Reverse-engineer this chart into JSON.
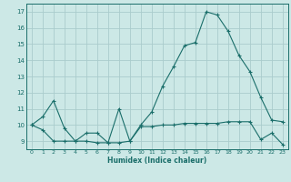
{
  "xlabel": "Humidex (Indice chaleur)",
  "bg_color": "#cce8e6",
  "grid_color": "#aacccc",
  "line_color": "#1a6e6a",
  "xlim": [
    -0.5,
    23.5
  ],
  "ylim": [
    8.5,
    17.5
  ],
  "xticks": [
    0,
    1,
    2,
    3,
    4,
    5,
    6,
    7,
    8,
    9,
    10,
    11,
    12,
    13,
    14,
    15,
    16,
    17,
    18,
    19,
    20,
    21,
    22,
    23
  ],
  "yticks": [
    9,
    10,
    11,
    12,
    13,
    14,
    15,
    16,
    17
  ],
  "line1_x": [
    0,
    1,
    2,
    3,
    4,
    5,
    6,
    7,
    8,
    9,
    10,
    11,
    12,
    13,
    14,
    15,
    16,
    17,
    18,
    19,
    20,
    21,
    22,
    23
  ],
  "line1_y": [
    10.0,
    10.5,
    11.5,
    9.8,
    9.0,
    9.5,
    9.5,
    8.9,
    11.0,
    9.0,
    10.0,
    10.8,
    12.4,
    13.6,
    14.9,
    15.1,
    17.0,
    16.8,
    15.8,
    14.3,
    13.3,
    11.7,
    10.3,
    10.2
  ],
  "line2_x": [
    0,
    1,
    2,
    3,
    4,
    5,
    6,
    7,
    8,
    9,
    10,
    11,
    12,
    13,
    14,
    15,
    16,
    17,
    18,
    19,
    20,
    21,
    22,
    23
  ],
  "line2_y": [
    10.0,
    9.7,
    9.0,
    9.0,
    9.0,
    9.0,
    8.9,
    8.9,
    8.9,
    9.0,
    9.9,
    9.9,
    10.0,
    10.0,
    10.1,
    10.1,
    10.1,
    10.1,
    10.2,
    10.2,
    10.2,
    9.1,
    9.5,
    8.8
  ]
}
